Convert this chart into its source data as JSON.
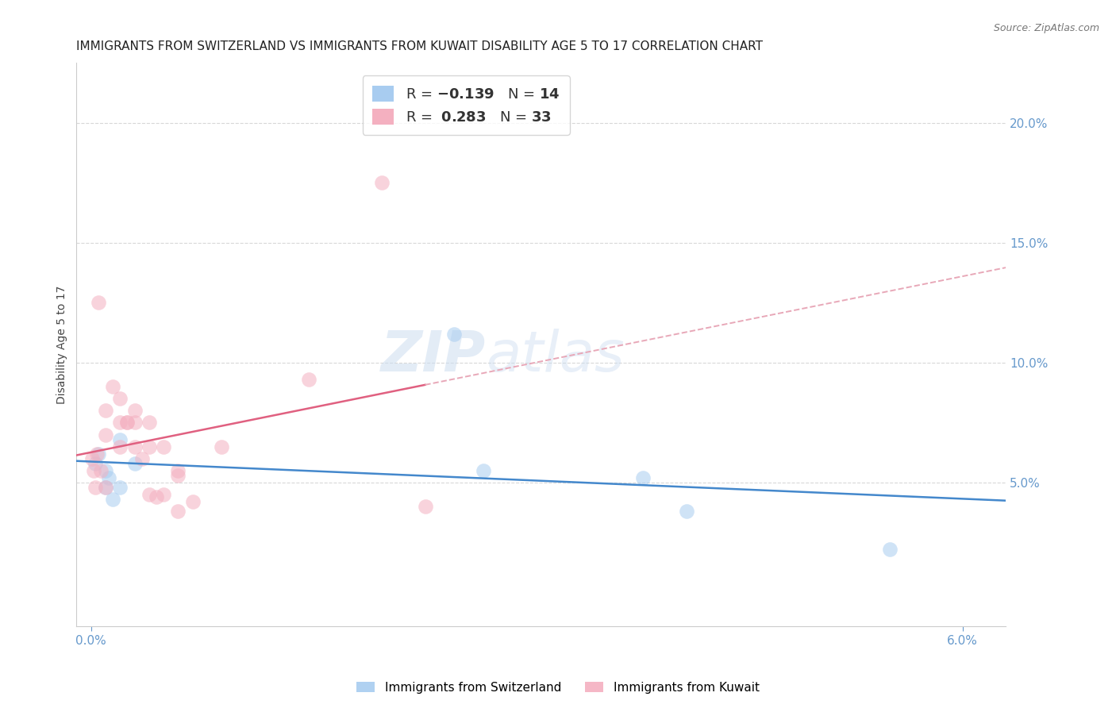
{
  "title": "IMMIGRANTS FROM SWITZERLAND VS IMMIGRANTS FROM KUWAIT DISABILITY AGE 5 TO 17 CORRELATION CHART",
  "source": "Source: ZipAtlas.com",
  "ylabel": "Disability Age 5 to 17",
  "xlim": [
    -0.001,
    0.063
  ],
  "ylim": [
    -0.01,
    0.225
  ],
  "right_yticks": [
    0.05,
    0.1,
    0.15,
    0.2
  ],
  "right_yticklabels": [
    "5.0%",
    "10.0%",
    "15.0%",
    "20.0%"
  ],
  "switzerland_x": [
    0.0003,
    0.0005,
    0.001,
    0.001,
    0.0012,
    0.0015,
    0.002,
    0.002,
    0.003,
    0.025,
    0.027,
    0.038,
    0.041,
    0.055
  ],
  "switzerland_y": [
    0.058,
    0.062,
    0.055,
    0.048,
    0.052,
    0.043,
    0.068,
    0.048,
    0.058,
    0.112,
    0.055,
    0.052,
    0.038,
    0.022
  ],
  "kuwait_x": [
    0.0001,
    0.0002,
    0.0003,
    0.0004,
    0.0005,
    0.0007,
    0.001,
    0.001,
    0.001,
    0.0015,
    0.002,
    0.002,
    0.002,
    0.0025,
    0.0025,
    0.003,
    0.003,
    0.003,
    0.0035,
    0.004,
    0.004,
    0.004,
    0.0045,
    0.005,
    0.005,
    0.006,
    0.006,
    0.006,
    0.007,
    0.009,
    0.015,
    0.02,
    0.023
  ],
  "kuwait_y": [
    0.06,
    0.055,
    0.048,
    0.062,
    0.125,
    0.055,
    0.08,
    0.048,
    0.07,
    0.09,
    0.085,
    0.075,
    0.065,
    0.075,
    0.075,
    0.065,
    0.075,
    0.08,
    0.06,
    0.065,
    0.075,
    0.045,
    0.044,
    0.065,
    0.045,
    0.055,
    0.053,
    0.038,
    0.042,
    0.065,
    0.093,
    0.175,
    0.04
  ],
  "switzerland_color": "#a8ccf0",
  "kuwait_color": "#f4b0c0",
  "trendline_switzerland_color": "#4488cc",
  "trendline_kuwait_solid_color": "#e06080",
  "trendline_kuwait_dashed_color": "#e8a8b8",
  "watermark_zip_color": "#c8d8f0",
  "watermark_atlas_color": "#c8d8f0",
  "background_color": "#ffffff",
  "grid_color": "#d8d8d8",
  "axis_color": "#6699cc",
  "title_fontsize": 11,
  "label_fontsize": 10,
  "tick_fontsize": 11,
  "scatter_size": 180,
  "scatter_alpha": 0.55,
  "trendline_lw": 1.8
}
